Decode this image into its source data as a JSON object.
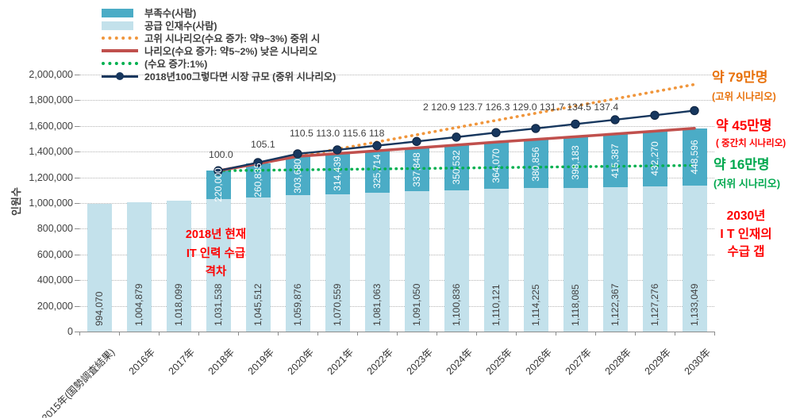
{
  "colors": {
    "shortage_bar": "#4bacc6",
    "supply_bar": "#c3e1eb",
    "high_scenario_line": "#f0963c",
    "mid_scenario_line": "#c0504d",
    "low_scenario_line": "#00b050",
    "index_line": "#17375e",
    "annotation_red": "#fe0000",
    "annotation_orange": "#e8720c",
    "annotation_green": "#00a84e"
  },
  "legend": {
    "items": [
      {
        "swatch": "bar",
        "color": "#4bacc6",
        "label": "부족수(사람)"
      },
      {
        "swatch": "bar",
        "color": "#c3e1eb",
        "label": "공급 인재수(사람)"
      },
      {
        "swatch": "dotted-line",
        "color": "#f0963c",
        "label": "고위 시나리오(수요 증가: 약9~3%) 중위 시"
      },
      {
        "swatch": "solid-line",
        "color": "#c0504d",
        "label": "나리오(수요 증가: 약5~2%) 낮은 시나리오"
      },
      {
        "swatch": "dotted-line",
        "color": "#00b050",
        "label": "(수요 증가:1%)"
      },
      {
        "swatch": "line-marker",
        "color": "#17375e",
        "label": "2018년100그렇다면 시장 규모 (중위 시나리오)"
      }
    ]
  },
  "y_axis": {
    "title": "인원수",
    "ticks": [
      "0",
      "200,000",
      "400,000",
      "600,000",
      "800,000",
      "1,000,000",
      "1,200,000",
      "1,400,000",
      "1,600,000",
      "1,800,000",
      "2,000,000"
    ]
  },
  "chart_data": {
    "type": "bar",
    "subtype": "stacked-bar-with-lines",
    "title": "",
    "ylabel": "인원수",
    "ylim": [
      0,
      2000000
    ],
    "ytick_step": 200000,
    "grid": "horizontal-dotted",
    "legend_position": "top-left",
    "categories": [
      "2015年(国勢調査結果)",
      "2016年",
      "2017年",
      "2018年",
      "2019年",
      "2020年",
      "2021年",
      "2022年",
      "2023年",
      "2024年",
      "2025年",
      "2026年",
      "2027年",
      "2028年",
      "2029年",
      "2030年"
    ],
    "series": [
      {
        "name": "공급 인재수(사람)",
        "role": "supply",
        "color": "#c3e1eb",
        "values": [
          994070,
          1004879,
          1018099,
          1031538,
          1045512,
          1059876,
          1070559,
          1081063,
          1091050,
          1100836,
          1110121,
          1114225,
          1118085,
          1122367,
          1127276,
          1133049
        ]
      },
      {
        "name": "부족수(사람)",
        "role": "shortage",
        "color": "#4bacc6",
        "values": [
          null,
          null,
          null,
          220000,
          260835,
          303680,
          314439,
          325714,
          337848,
          350532,
          364070,
          380856,
          398183,
          415387,
          432270,
          448596
        ]
      }
    ],
    "line_series": [
      {
        "name": "고위 시나리오(수요 증가: 약9~3%)",
        "style": "dotted",
        "color": "#f0963c",
        "start_category": "2018年",
        "start_value_rule": "supply+shortage at 2018",
        "end_gap_above_supply_2030": 790000
      },
      {
        "name": "중위 시나리오(수요 증가: 약5~2%)",
        "style": "solid",
        "color": "#c0504d",
        "start_category": "2018年",
        "follows": "supply+shortage"
      },
      {
        "name": "저위 시나리오(수요 증가:1%)",
        "style": "dotted",
        "color": "#00b050",
        "start_category": "2018年",
        "start_value_rule": "supply+shortage at 2018",
        "end_gap_above_supply_2030": 160000
      },
      {
        "name": "2018년=100 시장 규모 (중위 시나리오)",
        "style": "solid-marker",
        "color": "#17375e",
        "start_category": "2018年",
        "index_values": [
          100.0,
          105.1,
          110.5,
          113.0,
          115.6,
          118.2,
          120.9,
          123.7,
          126.3,
          129.0,
          131.7,
          134.5,
          137.4
        ]
      }
    ],
    "index_label_rows": [
      "100.0",
      "105.1",
      "110.5 113.0 115.6 118",
      "2 120.9 123.7 126.3 129.0 131.7 134.5 137.4"
    ]
  },
  "annotations": {
    "gap_2018": {
      "color": "#fe0000",
      "lines": [
        "2018년 현재",
        "IT 인력 수급",
        "격차"
      ]
    },
    "right_high": {
      "color": "#e8720c",
      "headline": "약 79만명",
      "sub": "(고위 시나리오)"
    },
    "right_mid": {
      "color": "#fe0000",
      "headline": "약 45만명",
      "sub": "( 중간치 시나리오)"
    },
    "right_low": {
      "color": "#00a84e",
      "headline": "약 16만명",
      "sub": "(저위 시나리오)"
    },
    "gap_2030": {
      "color": "#fe0000",
      "lines": [
        "2030년",
        "I T 인재의",
        "수급 갭"
      ]
    }
  }
}
